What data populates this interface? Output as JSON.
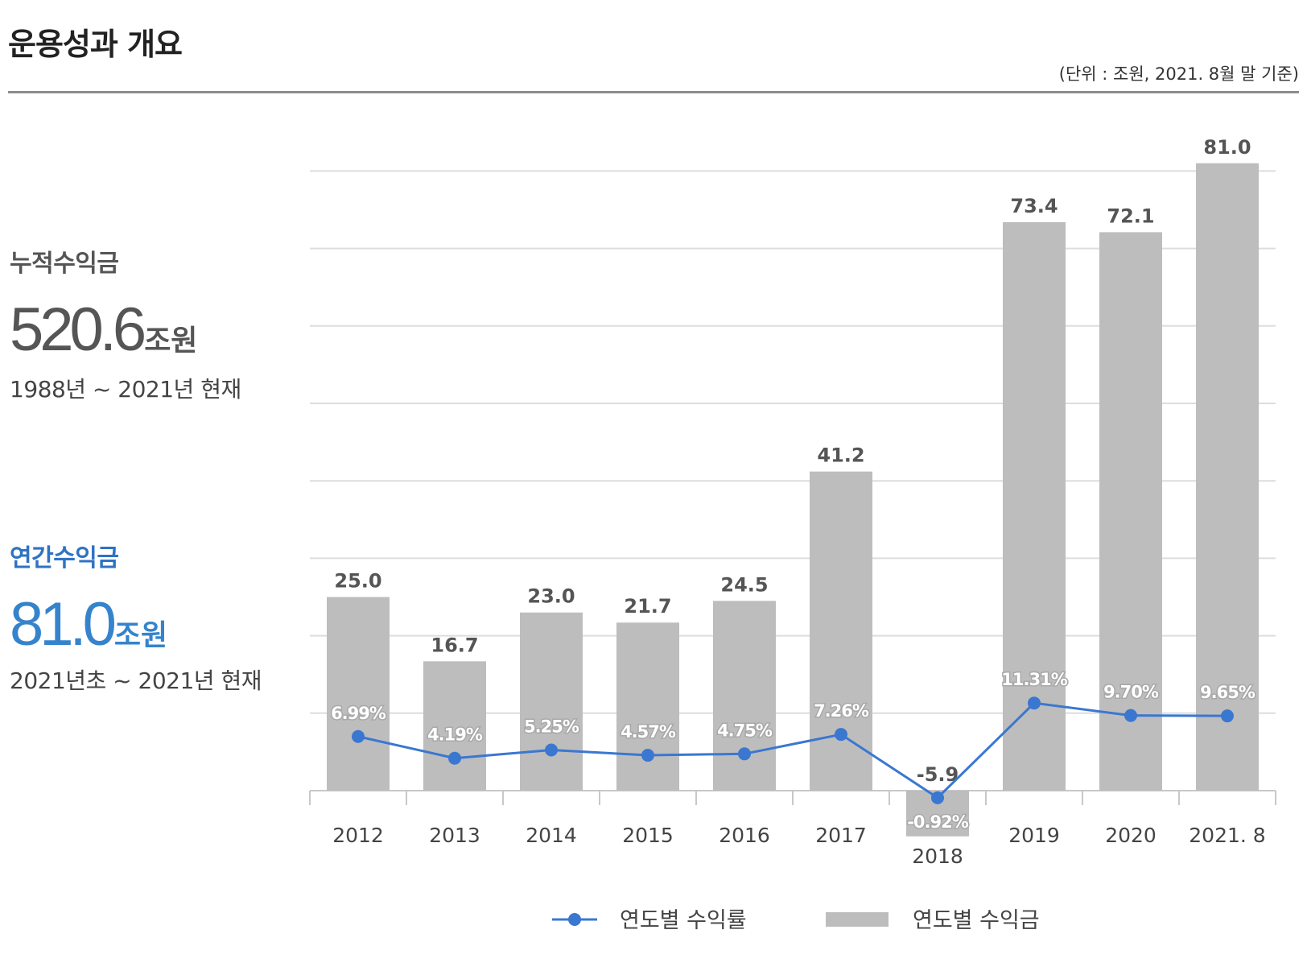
{
  "header": {
    "title": "운용성과 개요",
    "unit_note": "(단위 : 조원, 2021. 8월 말 기준)"
  },
  "cumulative": {
    "label": "누적수익금",
    "value": "520.6",
    "suffix": "조원",
    "period": "1988년 ~ 2021년 현재"
  },
  "annual": {
    "label": "연간수익금",
    "value": "81.0",
    "suffix": "조원",
    "period": "2021년초 ~ 2021년 현재"
  },
  "colors": {
    "bar": "#bdbdbd",
    "line": "#3a77d1",
    "grid": "#dddddd",
    "accent": "#3583cc"
  },
  "chart_data": {
    "type": "bar",
    "title": "",
    "categories": [
      "2012",
      "2013",
      "2014",
      "2015",
      "2016",
      "2017",
      "2018",
      "2019",
      "2020",
      "2021. 8"
    ],
    "series": [
      {
        "name": "연도별 수익금",
        "type": "bar",
        "values": [
          25.0,
          16.7,
          23.0,
          21.7,
          24.5,
          41.2,
          -5.9,
          73.4,
          72.1,
          81.0
        ],
        "labels": [
          "25.0",
          "16.7",
          "23.0",
          "21.7",
          "24.5",
          "41.2",
          "-5.9",
          "73.4",
          "72.1",
          "81.0"
        ]
      },
      {
        "name": "연도별 수익률",
        "type": "line",
        "values": [
          6.99,
          4.19,
          5.25,
          4.57,
          4.75,
          7.26,
          -0.92,
          11.31,
          9.7,
          9.65
        ],
        "labels": [
          "6.99%",
          "4.19%",
          "5.25%",
          "4.57%",
          "4.75%",
          "7.26%",
          "-0.92%",
          "11.31%",
          "9.70%",
          "9.65%"
        ]
      }
    ],
    "ylim_bar": [
      -10,
      80
    ],
    "ylim_line": [
      -10,
      80
    ],
    "grid": true,
    "legend": "bottom-center"
  }
}
